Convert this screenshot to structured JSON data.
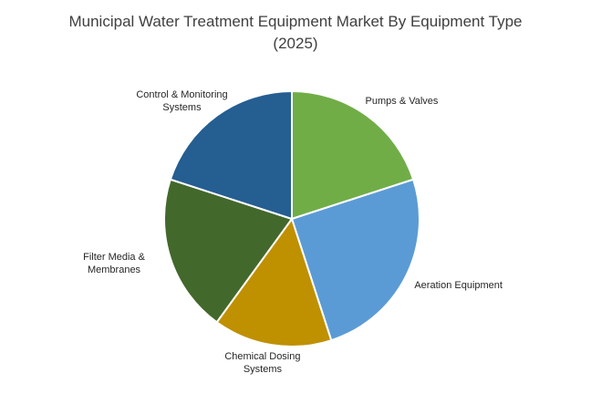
{
  "chart_data": {
    "type": "pie",
    "title": "Municipal Water Treatment Equipment Market By Equipment Type (2025)",
    "categories": [
      "Pumps & Valves",
      "Aeration Equipment",
      "Chemical Dosing Systems",
      "Filter Media & Membranes",
      "Control & Monitoring Systems"
    ],
    "values": [
      20,
      25,
      15,
      20,
      20
    ],
    "colors": [
      "#70ad47",
      "#5b9bd5",
      "#bf9000",
      "#43682b",
      "#255e91"
    ]
  }
}
